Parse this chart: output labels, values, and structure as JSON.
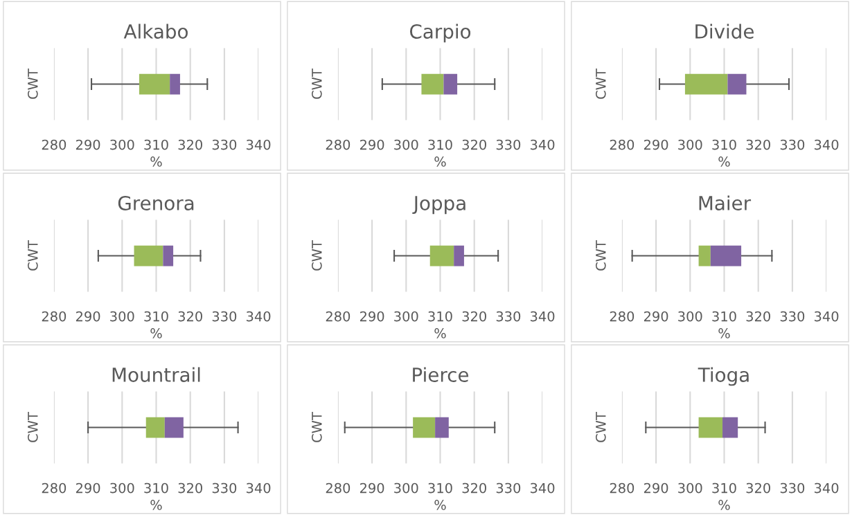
{
  "chart_data": [
    {
      "type": "box",
      "title": "Alkabo",
      "xlabel": "%",
      "ylabel": "CWT",
      "orientation": "horizontal",
      "categories": [
        null
      ],
      "boxes": [
        {
          "low": 291,
          "q1": 305,
          "median": 314,
          "q3": 317,
          "high": 325
        }
      ],
      "colors": [
        [
          "#9bbb59",
          "#8064a2"
        ]
      ],
      "xlim": [
        280,
        340
      ],
      "xticks": [
        280,
        290,
        300,
        310,
        320,
        330,
        340
      ],
      "grid": "x",
      "tick_labels": "x"
    },
    {
      "type": "box",
      "title": "Carpio",
      "xlabel": "%",
      "ylabel": "CWT",
      "orientation": "horizontal",
      "categories": [
        null
      ],
      "boxes": [
        {
          "low": 293,
          "q1": 304.5,
          "median": 311,
          "q3": 315,
          "high": 326
        }
      ],
      "colors": [
        [
          "#9bbb59",
          "#8064a2"
        ]
      ],
      "xlim": [
        280,
        340
      ],
      "xticks": [
        280,
        290,
        300,
        310,
        320,
        330,
        340
      ],
      "grid": "x",
      "tick_labels": "x"
    },
    {
      "type": "box",
      "title": "Divide",
      "xlabel": "%",
      "ylabel": "CWT",
      "orientation": "horizontal",
      "categories": [
        null
      ],
      "boxes": [
        {
          "low": 291,
          "q1": 298.5,
          "median": 311,
          "q3": 316.5,
          "high": 329
        }
      ],
      "colors": [
        [
          "#9bbb59",
          "#8064a2"
        ]
      ],
      "xlim": [
        280,
        340
      ],
      "xticks": [
        280,
        290,
        300,
        310,
        320,
        330,
        340
      ],
      "grid": "x",
      "tick_labels": "x"
    },
    {
      "type": "box",
      "title": "Grenora",
      "xlabel": "%",
      "ylabel": "CWT",
      "orientation": "horizontal",
      "categories": [
        null
      ],
      "boxes": [
        {
          "low": 293,
          "q1": 303.5,
          "median": 312,
          "q3": 315,
          "high": 323
        }
      ],
      "colors": [
        [
          "#9bbb59",
          "#8064a2"
        ]
      ],
      "xlim": [
        280,
        340
      ],
      "xticks": [
        280,
        290,
        300,
        310,
        320,
        330,
        340
      ],
      "grid": "x",
      "tick_labels": "x"
    },
    {
      "type": "box",
      "title": "Joppa",
      "xlabel": "%",
      "ylabel": "CWT",
      "orientation": "horizontal",
      "categories": [
        null
      ],
      "boxes": [
        {
          "low": 296.5,
          "q1": 307,
          "median": 314,
          "q3": 317,
          "high": 327
        }
      ],
      "colors": [
        [
          "#9bbb59",
          "#8064a2"
        ]
      ],
      "xlim": [
        280,
        340
      ],
      "xticks": [
        280,
        290,
        300,
        310,
        320,
        330,
        340
      ],
      "grid": "x",
      "tick_labels": "x"
    },
    {
      "type": "box",
      "title": "Maier",
      "xlabel": "%",
      "ylabel": "CWT",
      "orientation": "horizontal",
      "categories": [
        null
      ],
      "boxes": [
        {
          "low": 283,
          "q1": 302.5,
          "median": 306,
          "q3": 315,
          "high": 324
        }
      ],
      "colors": [
        [
          "#9bbb59",
          "#8064a2"
        ]
      ],
      "xlim": [
        280,
        340
      ],
      "xticks": [
        280,
        290,
        300,
        310,
        320,
        330,
        340
      ],
      "grid": "x",
      "tick_labels": "x"
    },
    {
      "type": "box",
      "title": "Mountrail",
      "xlabel": "%",
      "ylabel": "CWT",
      "orientation": "horizontal",
      "categories": [
        null
      ],
      "boxes": [
        {
          "low": 290,
          "q1": 307,
          "median": 312.5,
          "q3": 318,
          "high": 334
        }
      ],
      "colors": [
        [
          "#9bbb59",
          "#8064a2"
        ]
      ],
      "xlim": [
        280,
        340
      ],
      "xticks": [
        280,
        290,
        300,
        310,
        320,
        330,
        340
      ],
      "grid": "x",
      "tick_labels": "x"
    },
    {
      "type": "box",
      "title": "Pierce",
      "xlabel": "%",
      "ylabel": "CWT",
      "orientation": "horizontal",
      "categories": [
        null
      ],
      "boxes": [
        {
          "low": 282,
          "q1": 302,
          "median": 308.5,
          "q3": 312.5,
          "high": 326
        }
      ],
      "colors": [
        [
          "#9bbb59",
          "#8064a2"
        ]
      ],
      "xlim": [
        280,
        340
      ],
      "xticks": [
        280,
        290,
        300,
        310,
        320,
        330,
        340
      ],
      "grid": "x",
      "tick_labels": "x"
    },
    {
      "type": "box",
      "title": "Tioga",
      "xlabel": "%",
      "ylabel": "CWT",
      "orientation": "horizontal",
      "categories": [
        null
      ],
      "boxes": [
        {
          "low": 287,
          "q1": 302.5,
          "median": 309.5,
          "q3": 314,
          "high": 322
        }
      ],
      "colors": [
        [
          "#9bbb59",
          "#8064a2"
        ]
      ],
      "xlim": [
        280,
        340
      ],
      "xticks": [
        280,
        290,
        300,
        310,
        320,
        330,
        340
      ],
      "grid": "x",
      "tick_labels": "x"
    }
  ]
}
